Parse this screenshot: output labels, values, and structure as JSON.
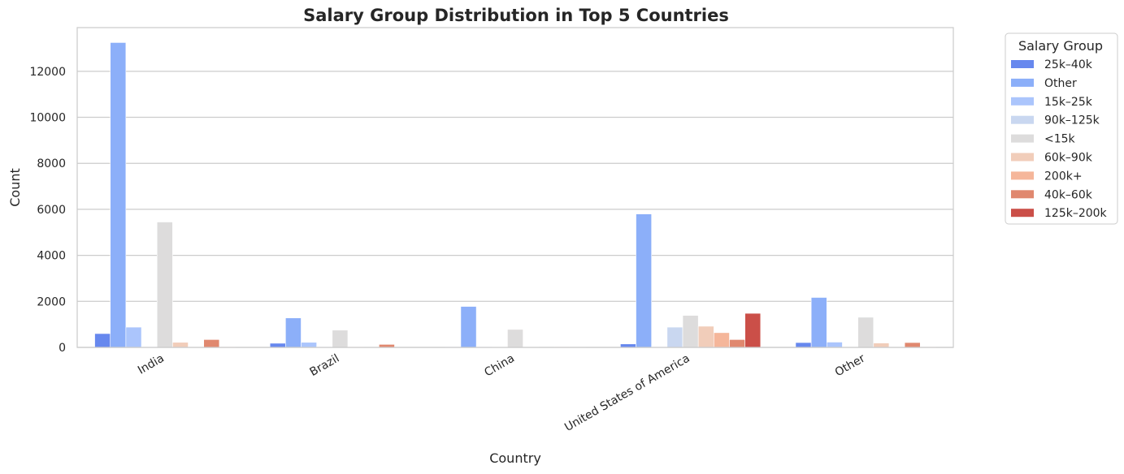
{
  "chart_data": {
    "type": "bar",
    "title": "Salary Group Distribution in Top 5 Countries",
    "xlabel": "Country",
    "ylabel": "Count",
    "ylim": [
      0,
      13900
    ],
    "yticks": [
      0,
      2000,
      4000,
      6000,
      8000,
      10000,
      12000
    ],
    "grid": "y-axis",
    "legend_title": "Salary Group",
    "legend_position": "outside-right",
    "categories": [
      "India",
      "Brazil",
      "China",
      "United States of America",
      "Other"
    ],
    "series": [
      {
        "name": "25k–40k",
        "color": "#6788ee",
        "values": [
          600,
          180,
          20,
          150,
          210
        ]
      },
      {
        "name": "Other",
        "color": "#8caff9",
        "values": [
          13250,
          1280,
          1780,
          5800,
          2170
        ]
      },
      {
        "name": "15k–25k",
        "color": "#abc5fc",
        "values": [
          880,
          220,
          30,
          30,
          230
        ]
      },
      {
        "name": "90k–125k",
        "color": "#c9d7f0",
        "values": [
          30,
          30,
          25,
          880,
          20
        ]
      },
      {
        "name": "<15k",
        "color": "#dddcdc",
        "values": [
          5450,
          750,
          780,
          1390,
          1310
        ]
      },
      {
        "name": "60k–90k",
        "color": "#f1cdba",
        "values": [
          220,
          30,
          20,
          920,
          190
        ]
      },
      {
        "name": "200k+",
        "color": "#f5b69a",
        "values": [
          20,
          20,
          10,
          640,
          20
        ]
      },
      {
        "name": "40k–60k",
        "color": "#e0886f",
        "values": [
          340,
          130,
          30,
          340,
          210
        ]
      },
      {
        "name": "125k–200k",
        "color": "#cb4f48",
        "values": [
          20,
          10,
          10,
          1480,
          20
        ]
      }
    ]
  }
}
